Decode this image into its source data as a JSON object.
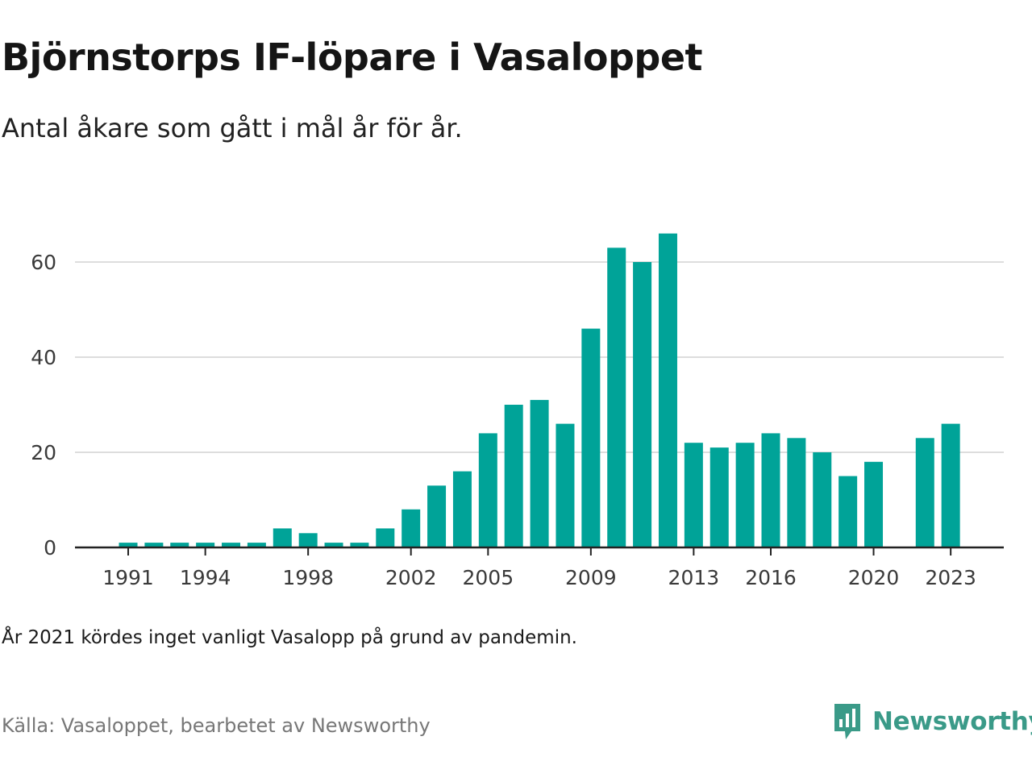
{
  "title": "Björnstorps IF-löpare i Vasaloppet",
  "subtitle": "Antal åkare som gått i mål år för år.",
  "note": "År 2021 kördes inget vanligt Vasalopp på grund av pandemin.",
  "source": "Källa: Vasaloppet, bearbetet av Newsworthy",
  "logo": {
    "text": "Newsworthy",
    "icon": "newsworthy-logo-icon"
  },
  "colors": {
    "bar": "#00a398",
    "grid": "#dddddd",
    "axis": "#222222",
    "logo": "#3a9a88"
  },
  "chart_data": {
    "type": "bar",
    "title": "Björnstorps IF-löpare i Vasaloppet",
    "subtitle": "Antal åkare som gått i mål år för år.",
    "xlabel": "",
    "ylabel": "",
    "ylim": [
      0,
      70
    ],
    "yticks": [
      0,
      20,
      40,
      60
    ],
    "x_tick_labels": [
      "1991",
      "1994",
      "1998",
      "2002",
      "2005",
      "2009",
      "2013",
      "2016",
      "2020",
      "2023"
    ],
    "grid": true,
    "legend": "none",
    "categories": [
      1990,
      1991,
      1992,
      1993,
      1994,
      1995,
      1996,
      1997,
      1998,
      1999,
      2000,
      2001,
      2002,
      2003,
      2004,
      2005,
      2006,
      2007,
      2008,
      2009,
      2010,
      2011,
      2012,
      2013,
      2014,
      2015,
      2016,
      2017,
      2018,
      2019,
      2020,
      2021,
      2022,
      2023
    ],
    "values": [
      0,
      1,
      1,
      1,
      1,
      1,
      1,
      4,
      3,
      1,
      1,
      4,
      8,
      13,
      16,
      24,
      30,
      31,
      26,
      46,
      63,
      60,
      66,
      22,
      21,
      22,
      24,
      23,
      20,
      15,
      18,
      0,
      23,
      26
    ]
  }
}
